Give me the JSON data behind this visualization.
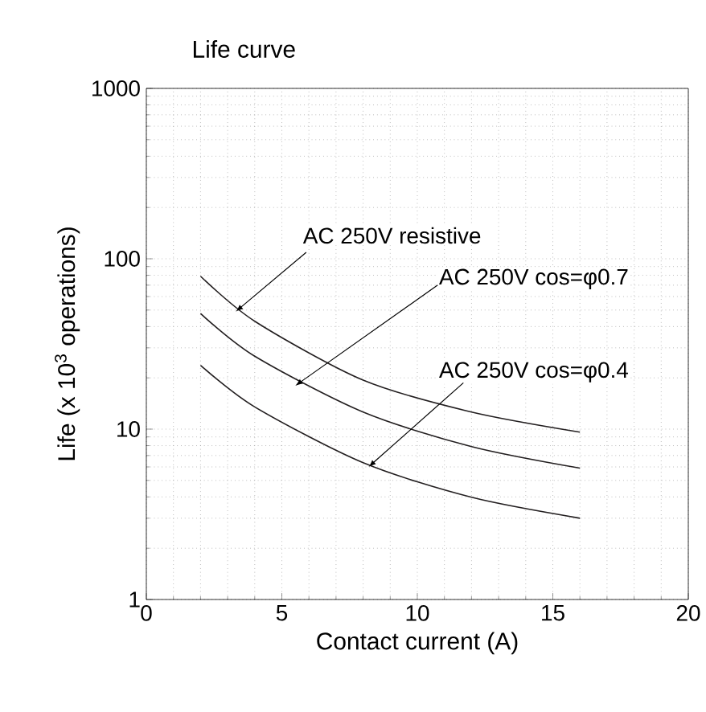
{
  "chart_data": {
    "type": "line",
    "title": "Life curve",
    "xlabel": "Contact current (A)",
    "ylabel": "Life (x 10$^{3}$ operations)",
    "x": [
      2,
      4,
      8,
      12,
      16
    ],
    "series": [
      {
        "color": "#231f20",
        "values": [
          79,
          43,
          19.4,
          12.6,
          9.6
        ]
      },
      {
        "color": "#231f20",
        "values": [
          47.7,
          26.8,
          12.6,
          7.9,
          5.9
        ]
      },
      {
        "color": "#231f20",
        "values": [
          23.7,
          13.5,
          6.35,
          3.98,
          3.0
        ]
      }
    ],
    "annotations": [
      {
        "text": "AC 250V resistive",
        "x": 3.3,
        "y": 49
      },
      {
        "text": "AC 250V cos=φ0.7",
        "x": 5.5,
        "y": 18
      },
      {
        "text": "AC 250V cos=φ0.4",
        "x": 8.2,
        "y": 6.0
      }
    ],
    "log": "y",
    "xlim": [
      0,
      20
    ],
    "ylim": [
      1,
      1000
    ],
    "xticks": [
      0,
      5,
      10,
      15,
      20
    ],
    "yticks": [
      1,
      10,
      100,
      1000
    ],
    "grid": true,
    "marker": "none",
    "line_style": "solid"
  }
}
